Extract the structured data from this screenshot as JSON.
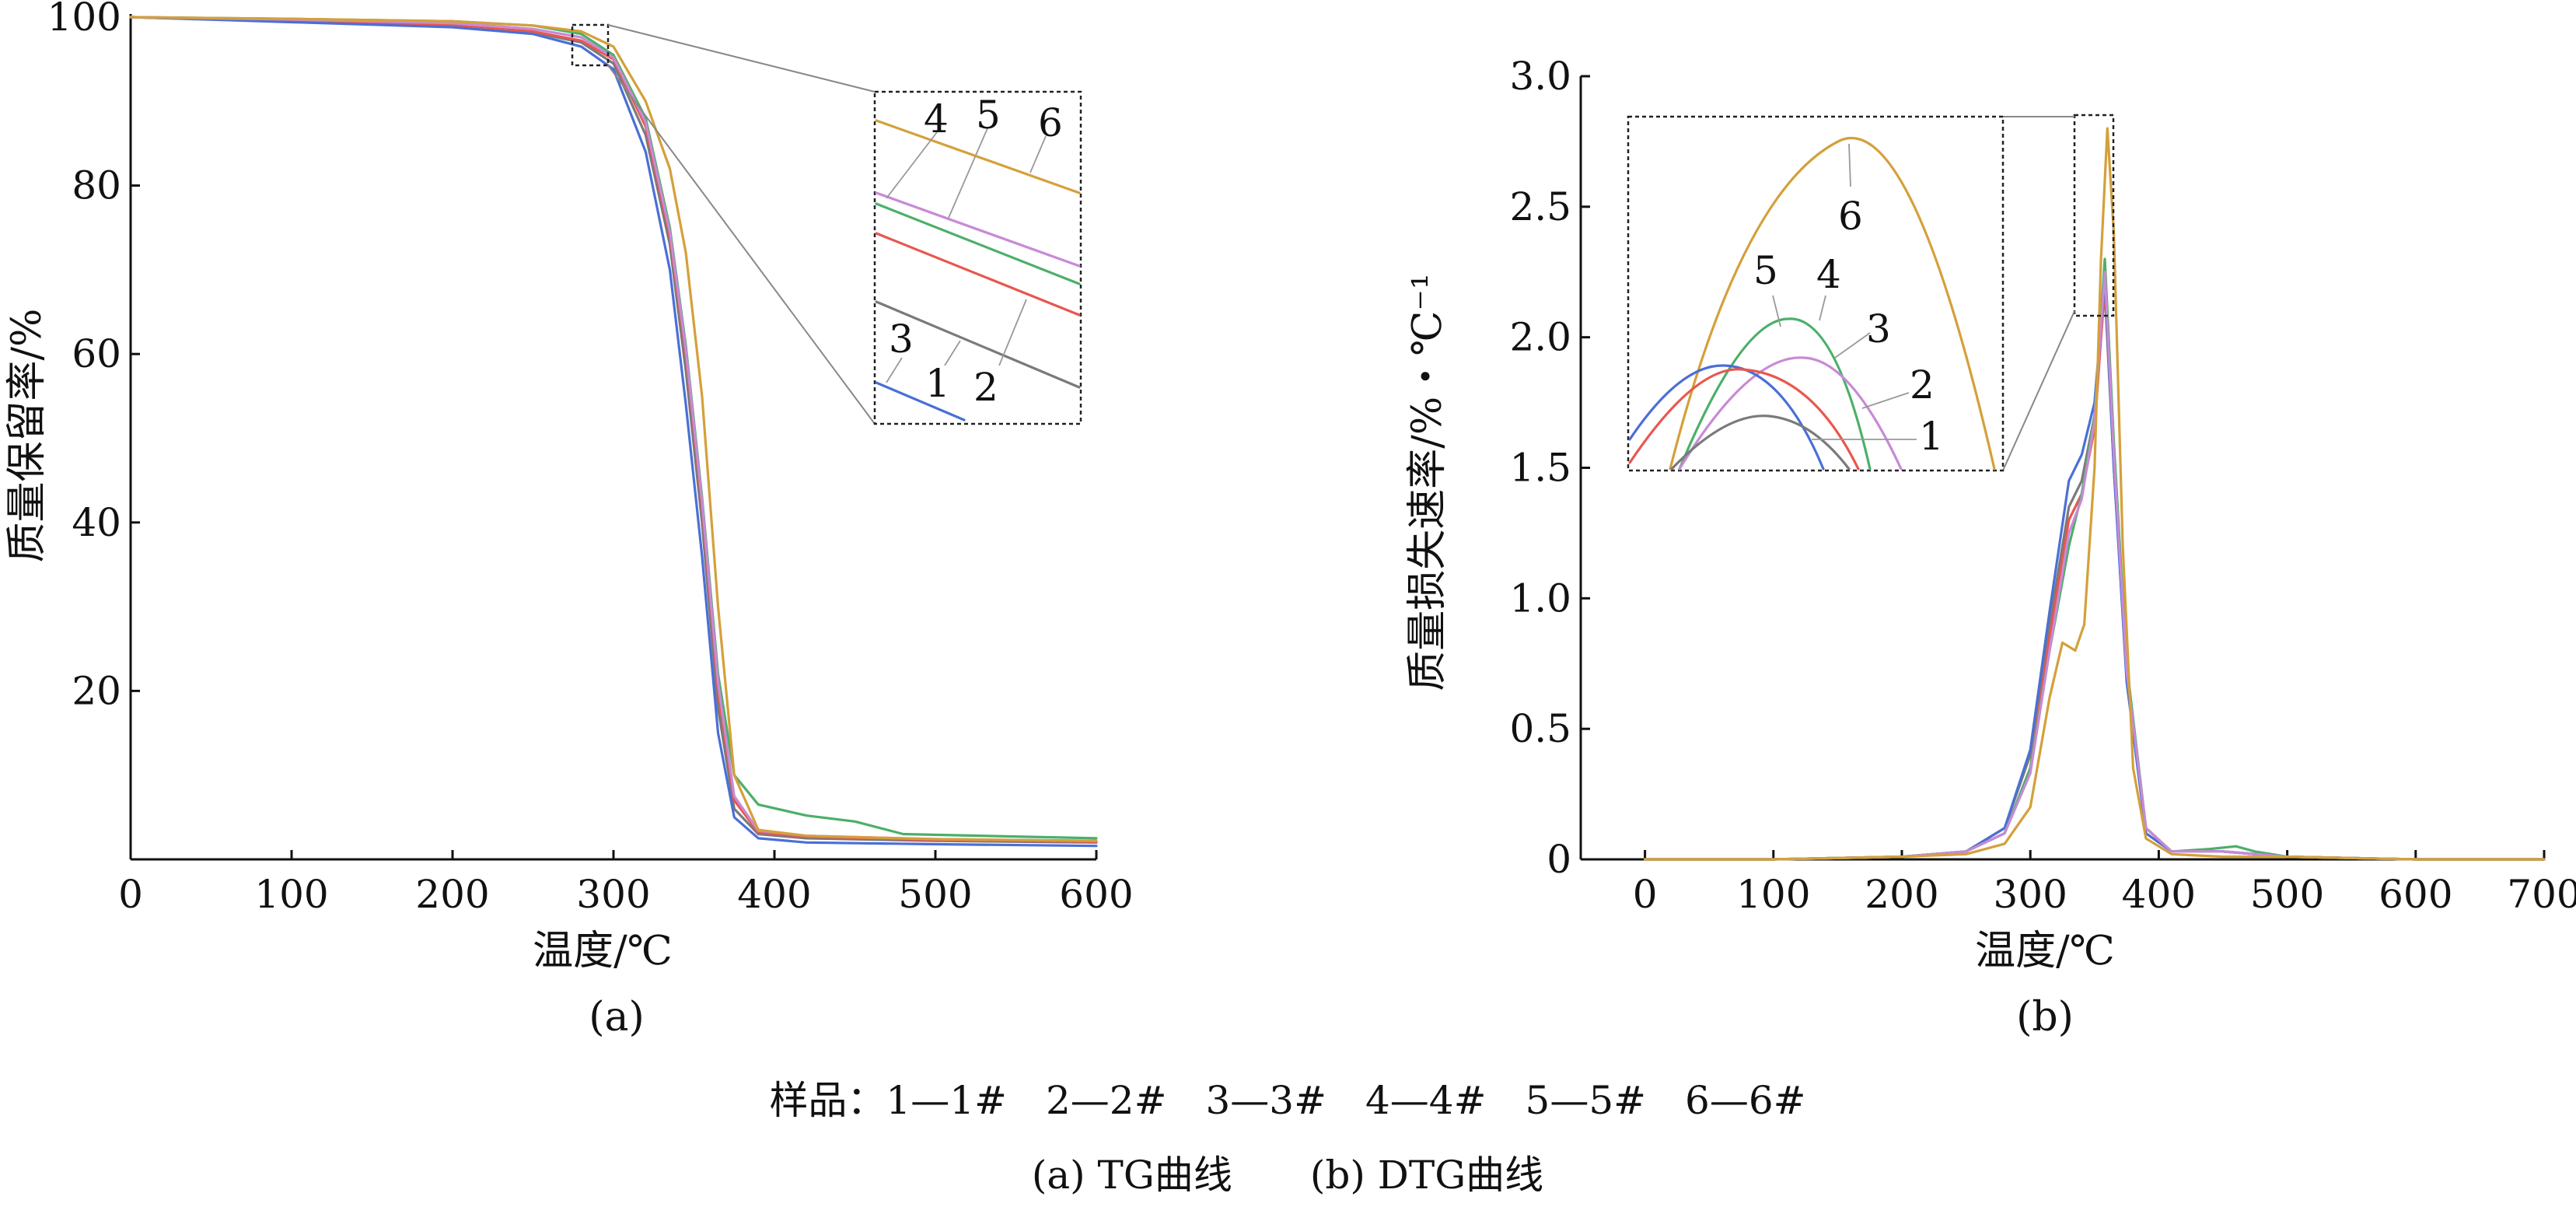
{
  "chart_data": [
    {
      "type": "line",
      "id": "tg",
      "title": "(a)",
      "xlabel": "温度/℃",
      "ylabel": "质量保留率/%",
      "xlim": [
        0,
        600
      ],
      "ylim": [
        0,
        100
      ],
      "xticks": [
        "0",
        "100",
        "200",
        "300",
        "400",
        "500",
        "600"
      ],
      "yticks": [
        "20",
        "40",
        "60",
        "80",
        "100"
      ],
      "grid": false,
      "inset_labels": [
        "4",
        "5",
        "6",
        "3",
        "1",
        "2"
      ],
      "series": [
        {
          "name": "1",
          "color": "#7a7a7a",
          "x": [
            0,
            100,
            200,
            250,
            280,
            300,
            320,
            335,
            345,
            355,
            365,
            375,
            390,
            420,
            500,
            600
          ],
          "y": [
            100,
            99.5,
            99,
            98.2,
            97,
            94.5,
            86,
            73,
            58,
            40,
            18,
            6,
            3,
            2.5,
            2.2,
            2
          ]
        },
        {
          "name": "2",
          "color": "#e8574f",
          "x": [
            0,
            100,
            200,
            250,
            280,
            300,
            320,
            335,
            345,
            355,
            365,
            375,
            390,
            420,
            500,
            600
          ],
          "y": [
            100,
            99.5,
            99,
            98.3,
            97.2,
            95,
            87,
            74,
            60,
            42,
            20,
            7,
            3.2,
            2.7,
            2.3,
            2.1
          ]
        },
        {
          "name": "3",
          "color": "#4a6fd6",
          "x": [
            0,
            100,
            200,
            250,
            280,
            300,
            320,
            335,
            345,
            355,
            365,
            375,
            390,
            420,
            500,
            600
          ],
          "y": [
            100,
            99.4,
            98.8,
            98,
            96.5,
            93.8,
            84,
            70,
            54,
            36,
            15,
            5,
            2.5,
            2,
            1.8,
            1.6
          ]
        },
        {
          "name": "4",
          "color": "#4caf6a",
          "x": [
            0,
            100,
            200,
            250,
            280,
            300,
            320,
            335,
            345,
            355,
            365,
            375,
            390,
            420,
            450,
            480,
            600
          ],
          "y": [
            100,
            99.8,
            99.5,
            99,
            98,
            95.5,
            88,
            75,
            61,
            43,
            22,
            10,
            6.5,
            5.2,
            4.5,
            3,
            2.5
          ]
        },
        {
          "name": "5",
          "color": "#c88ad6",
          "x": [
            0,
            100,
            200,
            250,
            280,
            300,
            320,
            335,
            345,
            355,
            365,
            375,
            390,
            420,
            500,
            600
          ],
          "y": [
            100,
            99.7,
            99.3,
            98.6,
            97.6,
            95.2,
            87.5,
            74.5,
            60.5,
            42.5,
            21,
            7.5,
            3.4,
            2.8,
            2.4,
            2.2
          ]
        },
        {
          "name": "6",
          "color": "#d4a03a",
          "x": [
            0,
            100,
            200,
            250,
            280,
            300,
            320,
            335,
            345,
            355,
            365,
            375,
            390,
            420,
            500,
            600
          ],
          "y": [
            100,
            99.8,
            99.5,
            99,
            98.3,
            96.5,
            90,
            82,
            72,
            55,
            30,
            10,
            3.5,
            2.8,
            2.4,
            2.2
          ]
        }
      ]
    },
    {
      "type": "line",
      "id": "dtg",
      "title": "(b)",
      "xlabel": "温度/℃",
      "ylabel": "质量损失速率/%・℃⁻¹",
      "xlim": [
        -50,
        700
      ],
      "ylim": [
        0,
        3.0
      ],
      "xticks": [
        "0",
        "100",
        "200",
        "300",
        "400",
        "500",
        "600",
        "700"
      ],
      "yticks": [
        "0",
        "0.5",
        "1.0",
        "1.5",
        "2.0",
        "2.5",
        "3.0"
      ],
      "grid": false,
      "inset_labels": [
        "6",
        "5",
        "4",
        "3",
        "2",
        "1"
      ],
      "series": [
        {
          "name": "1",
          "color": "#7a7a7a",
          "x": [
            0,
            100,
            200,
            250,
            280,
            300,
            315,
            330,
            340,
            350,
            358,
            365,
            375,
            390,
            410,
            450,
            500,
            600,
            700
          ],
          "y": [
            0,
            0,
            0.01,
            0.03,
            0.12,
            0.4,
            0.9,
            1.35,
            1.45,
            1.7,
            2.18,
            1.5,
            0.7,
            0.12,
            0.03,
            0.03,
            0.01,
            0,
            0
          ]
        },
        {
          "name": "2",
          "color": "#e8574f",
          "x": [
            0,
            100,
            200,
            250,
            280,
            300,
            315,
            330,
            340,
            350,
            358,
            365,
            375,
            390,
            410,
            450,
            500,
            600,
            700
          ],
          "y": [
            0,
            0,
            0.01,
            0.03,
            0.1,
            0.35,
            0.85,
            1.3,
            1.4,
            1.65,
            2.2,
            1.55,
            0.72,
            0.12,
            0.03,
            0.03,
            0.01,
            0,
            0
          ]
        },
        {
          "name": "3",
          "color": "#4a6fd6",
          "x": [
            0,
            100,
            200,
            250,
            280,
            300,
            315,
            330,
            340,
            350,
            358,
            365,
            375,
            390,
            410,
            450,
            500,
            600,
            700
          ],
          "y": [
            0,
            0,
            0.01,
            0.03,
            0.12,
            0.42,
            0.95,
            1.45,
            1.55,
            1.75,
            2.22,
            1.5,
            0.68,
            0.1,
            0.03,
            0.03,
            0.01,
            0,
            0
          ]
        },
        {
          "name": "4",
          "color": "#4caf6a",
          "x": [
            0,
            100,
            200,
            250,
            280,
            300,
            315,
            330,
            340,
            350,
            358,
            365,
            375,
            390,
            410,
            440,
            460,
            475,
            500,
            600,
            700
          ],
          "y": [
            0,
            0,
            0.01,
            0.03,
            0.1,
            0.35,
            0.8,
            1.2,
            1.4,
            1.7,
            2.3,
            1.6,
            0.75,
            0.12,
            0.03,
            0.04,
            0.05,
            0.03,
            0.01,
            0,
            0
          ]
        },
        {
          "name": "5",
          "color": "#c88ad6",
          "x": [
            0,
            100,
            200,
            250,
            280,
            300,
            315,
            330,
            340,
            350,
            358,
            365,
            375,
            390,
            410,
            450,
            500,
            600,
            700
          ],
          "y": [
            0,
            0,
            0.01,
            0.03,
            0.1,
            0.33,
            0.8,
            1.25,
            1.38,
            1.68,
            2.25,
            1.55,
            0.72,
            0.12,
            0.03,
            0.03,
            0.01,
            0,
            0
          ]
        },
        {
          "name": "6",
          "color": "#d4a03a",
          "x": [
            0,
            100,
            200,
            250,
            280,
            300,
            315,
            325,
            335,
            342,
            350,
            355,
            360,
            365,
            372,
            380,
            390,
            410,
            450,
            500,
            600,
            700
          ],
          "y": [
            0,
            0,
            0.01,
            0.02,
            0.06,
            0.2,
            0.62,
            0.83,
            0.8,
            0.9,
            1.5,
            2.3,
            2.8,
            2.4,
            1.2,
            0.35,
            0.08,
            0.02,
            0.01,
            0.01,
            0,
            0
          ]
        }
      ]
    }
  ],
  "legend_line": "样品：1—1#　2—2#　3—3#　4—4#　5—5#　6—6#",
  "caption": "(a) TG曲线　　(b) DTG曲线"
}
